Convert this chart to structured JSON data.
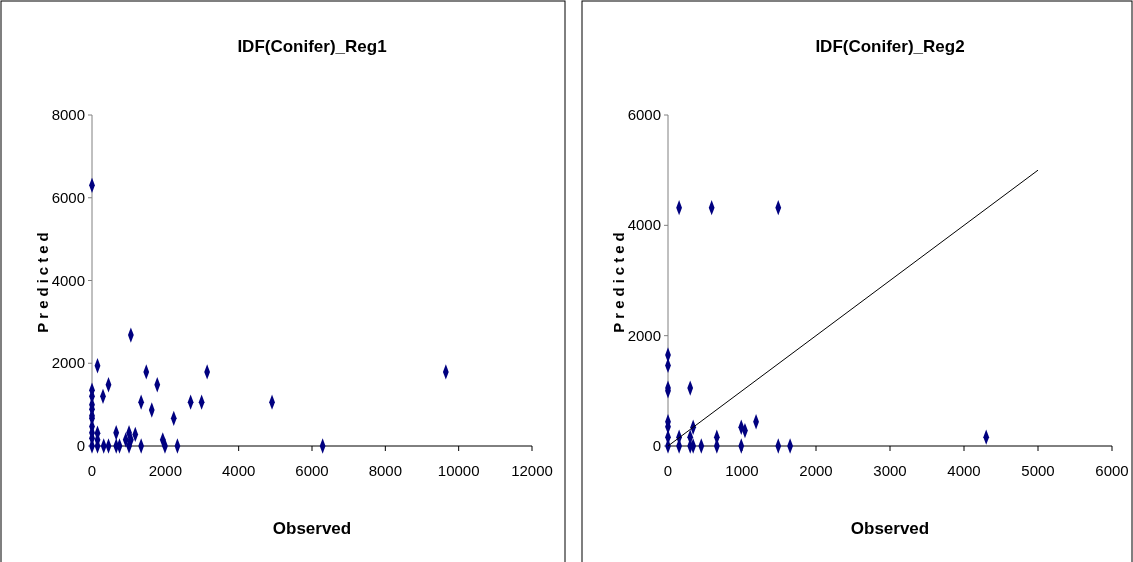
{
  "chart_data": [
    {
      "type": "scatter",
      "title": "IDF(Conifer)_Reg1",
      "xlabel": "Observed",
      "ylabel": "Predicted",
      "marker": "diamond",
      "xlim": [
        0,
        12000
      ],
      "xticks": [
        0,
        2000,
        4000,
        6000,
        8000,
        10000,
        12000
      ],
      "ylim": [
        0,
        8000
      ],
      "yticks": [
        0,
        2000,
        4000,
        6000,
        8000
      ],
      "series": [
        {
          "color": "#000080",
          "x": [
            0,
            1060,
            150,
            1480,
            3140,
            9650,
            450,
            1780,
            300,
            1340,
            2690,
            2990,
            4910,
            1630,
            2230,
            0,
            0,
            0,
            0,
            0,
            0,
            0,
            0,
            0,
            0,
            150,
            150,
            150,
            320,
            450,
            660,
            660,
            750,
            920,
            1010,
            1010,
            1060,
            1180,
            1340,
            1930,
            1990,
            2330,
            6290
          ],
          "values": [
            6300,
            2680,
            1940,
            1790,
            1790,
            1790,
            1480,
            1480,
            1200,
            1060,
            1060,
            1060,
            1060,
            870,
            670,
            1350,
            1200,
            1000,
            890,
            730,
            670,
            470,
            320,
            190,
            0,
            310,
            150,
            0,
            0,
            0,
            320,
            0,
            0,
            150,
            320,
            0,
            150,
            280,
            0,
            150,
            0,
            0,
            0
          ]
        }
      ]
    },
    {
      "type": "scatter",
      "title": "IDF(Conifer)_Reg2",
      "xlabel": "Observed",
      "ylabel": "Predicted",
      "marker": "diamond",
      "xlim": [
        0,
        6000
      ],
      "xticks": [
        0,
        1000,
        2000,
        3000,
        4000,
        5000,
        6000
      ],
      "ylim": [
        0,
        6000
      ],
      "yticks": [
        0,
        2000,
        4000,
        6000
      ],
      "series": [
        {
          "color": "#000080",
          "x": [
            150,
            590,
            1490,
            0,
            0,
            0,
            0,
            300,
            0,
            0,
            0,
            0,
            150,
            300,
            340,
            150,
            300,
            340,
            450,
            660,
            660,
            990,
            1040,
            1190,
            990,
            1490,
            1650,
            4300
          ],
          "values": [
            4320,
            4320,
            4320,
            1650,
            1460,
            1050,
            1000,
            1050,
            440,
            350,
            160,
            0,
            160,
            160,
            340,
            0,
            0,
            0,
            0,
            160,
            0,
            340,
            280,
            440,
            0,
            0,
            0,
            160
          ]
        },
        {
          "type": "line",
          "marker": "none",
          "color": "#000000",
          "x": [
            0,
            5000
          ],
          "values": [
            0,
            5000
          ]
        }
      ]
    }
  ]
}
